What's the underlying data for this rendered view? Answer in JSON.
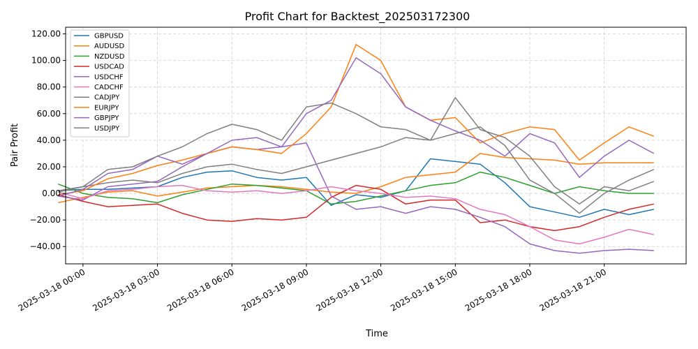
{
  "chart_data": {
    "type": "line",
    "title": "Profit Chart for Backtest_202503172300",
    "xlabel": "Time",
    "ylabel": "Pair Profit",
    "ylim": [
      -53,
      125
    ],
    "xlim": [
      -0.7,
      24.3
    ],
    "x_unit": "hours after 2025-03-18 00:00",
    "grid": true,
    "legend_position": "top-left",
    "yticks": [
      -40,
      -20,
      0,
      20,
      40,
      60,
      80,
      100,
      120
    ],
    "ytick_labels": [
      "−40.00",
      "−20.00",
      "0.00",
      "20.00",
      "40.00",
      "60.00",
      "80.00",
      "100.00",
      "120.00"
    ],
    "xticks": [
      0,
      3,
      6,
      9,
      12,
      15,
      18,
      21
    ],
    "xtick_labels": [
      "2025-03-18 00:00",
      "2025-03-18 03:00",
      "2025-03-18 06:00",
      "2025-03-18 09:00",
      "2025-03-18 12:00",
      "2025-03-18 15:00",
      "2025-03-18 18:00",
      "2025-03-18 21:00"
    ],
    "series": [
      {
        "name": "GBPUSD",
        "color": "#1f77b4",
        "points": [
          [
            -1,
            2
          ],
          [
            0,
            3
          ],
          [
            1,
            3
          ],
          [
            2,
            4
          ],
          [
            3,
            5
          ],
          [
            4,
            12
          ],
          [
            5,
            16
          ],
          [
            6,
            17
          ],
          [
            7,
            12
          ],
          [
            8,
            10
          ],
          [
            9,
            12
          ],
          [
            10,
            -9
          ],
          [
            11,
            -1
          ],
          [
            12,
            -3
          ],
          [
            13,
            2
          ],
          [
            14,
            26
          ],
          [
            15,
            24
          ],
          [
            16,
            22
          ],
          [
            17,
            8
          ],
          [
            18,
            -10
          ],
          [
            19,
            -14
          ],
          [
            20,
            -18
          ],
          [
            21,
            -12
          ],
          [
            22,
            -16
          ],
          [
            23,
            -12
          ]
        ]
      },
      {
        "name": "AUDUSD",
        "color": "#ff7f0e",
        "points": [
          [
            -1,
            -7
          ],
          [
            0,
            -3
          ],
          [
            1,
            1
          ],
          [
            2,
            2
          ],
          [
            3,
            -2
          ],
          [
            4,
            1
          ],
          [
            5,
            4
          ],
          [
            6,
            5
          ],
          [
            7,
            6
          ],
          [
            8,
            5
          ],
          [
            9,
            3
          ],
          [
            10,
            1
          ],
          [
            11,
            0
          ],
          [
            12,
            5
          ],
          [
            13,
            12
          ],
          [
            14,
            14
          ],
          [
            15,
            16
          ],
          [
            16,
            30
          ],
          [
            17,
            27
          ],
          [
            18,
            26
          ],
          [
            19,
            25
          ],
          [
            20,
            22
          ],
          [
            21,
            23
          ],
          [
            22,
            23
          ],
          [
            23,
            23
          ]
        ]
      },
      {
        "name": "NZDUSD",
        "color": "#2ca02c",
        "points": [
          [
            -1,
            7
          ],
          [
            0,
            0
          ],
          [
            1,
            -3
          ],
          [
            2,
            -4
          ],
          [
            3,
            -7
          ],
          [
            4,
            -1
          ],
          [
            5,
            3
          ],
          [
            6,
            7
          ],
          [
            7,
            6
          ],
          [
            8,
            4
          ],
          [
            9,
            2
          ],
          [
            10,
            -8
          ],
          [
            11,
            -6
          ],
          [
            12,
            -2
          ],
          [
            13,
            2
          ],
          [
            14,
            6
          ],
          [
            15,
            8
          ],
          [
            16,
            16
          ],
          [
            17,
            12
          ],
          [
            18,
            6
          ],
          [
            19,
            0
          ],
          [
            20,
            5
          ],
          [
            21,
            2
          ],
          [
            22,
            0
          ],
          [
            23,
            0
          ]
        ]
      },
      {
        "name": "USDCAD",
        "color": "#d62728",
        "points": [
          [
            -1,
            -1
          ],
          [
            0,
            -6
          ],
          [
            1,
            -10
          ],
          [
            2,
            -9
          ],
          [
            3,
            -8
          ],
          [
            4,
            -15
          ],
          [
            5,
            -20
          ],
          [
            6,
            -21
          ],
          [
            7,
            -19
          ],
          [
            8,
            -20
          ],
          [
            9,
            -18
          ],
          [
            10,
            -3
          ],
          [
            11,
            6
          ],
          [
            12,
            3
          ],
          [
            13,
            -8
          ],
          [
            14,
            -5
          ],
          [
            15,
            -5
          ],
          [
            16,
            -22
          ],
          [
            17,
            -20
          ],
          [
            18,
            -25
          ],
          [
            19,
            -28
          ],
          [
            20,
            -25
          ],
          [
            21,
            -18
          ],
          [
            22,
            -12
          ],
          [
            23,
            -8
          ]
        ]
      },
      {
        "name": "USDCHF",
        "color": "#9467bd",
        "points": [
          [
            -1,
            -2
          ],
          [
            0,
            -5
          ],
          [
            1,
            5
          ],
          [
            2,
            7
          ],
          [
            3,
            9
          ],
          [
            4,
            20
          ],
          [
            5,
            30
          ],
          [
            6,
            35
          ],
          [
            7,
            33
          ],
          [
            8,
            35
          ],
          [
            9,
            38
          ],
          [
            10,
            -2
          ],
          [
            11,
            -12
          ],
          [
            12,
            -10
          ],
          [
            13,
            -15
          ],
          [
            14,
            -10
          ],
          [
            15,
            -12
          ],
          [
            16,
            -18
          ],
          [
            17,
            -25
          ],
          [
            18,
            -38
          ],
          [
            19,
            -43
          ],
          [
            20,
            -45
          ],
          [
            21,
            -43
          ],
          [
            22,
            -42
          ],
          [
            23,
            -43
          ]
        ]
      },
      {
        "name": "CADCHF",
        "color": "#e377c2",
        "points": [
          [
            -1,
            1
          ],
          [
            0,
            -4
          ],
          [
            1,
            2
          ],
          [
            2,
            3
          ],
          [
            3,
            5
          ],
          [
            4,
            6
          ],
          [
            5,
            2
          ],
          [
            6,
            1
          ],
          [
            7,
            2
          ],
          [
            8,
            0
          ],
          [
            9,
            2
          ],
          [
            10,
            5
          ],
          [
            11,
            2
          ],
          [
            12,
            0
          ],
          [
            13,
            -3
          ],
          [
            14,
            -2
          ],
          [
            15,
            -4
          ],
          [
            16,
            -12
          ],
          [
            17,
            -16
          ],
          [
            18,
            -25
          ],
          [
            19,
            -35
          ],
          [
            20,
            -38
          ],
          [
            21,
            -33
          ],
          [
            22,
            -27
          ],
          [
            23,
            -31
          ]
        ]
      },
      {
        "name": "CADJPY",
        "color": "#7f7f7f",
        "points": [
          [
            -1,
            1
          ],
          [
            0,
            5
          ],
          [
            1,
            8
          ],
          [
            2,
            10
          ],
          [
            3,
            8
          ],
          [
            4,
            15
          ],
          [
            5,
            20
          ],
          [
            6,
            22
          ],
          [
            7,
            18
          ],
          [
            8,
            15
          ],
          [
            9,
            20
          ],
          [
            10,
            25
          ],
          [
            11,
            30
          ],
          [
            12,
            35
          ],
          [
            13,
            42
          ],
          [
            14,
            40
          ],
          [
            15,
            45
          ],
          [
            16,
            50
          ],
          [
            17,
            36
          ],
          [
            18,
            10
          ],
          [
            19,
            0
          ],
          [
            20,
            -15
          ],
          [
            21,
            0
          ],
          [
            22,
            10
          ],
          [
            23,
            18
          ]
        ]
      },
      {
        "name": "EURJPY",
        "color": "#ff7f0e",
        "points": [
          [
            -1,
            -1
          ],
          [
            0,
            2
          ],
          [
            1,
            11
          ],
          [
            2,
            15
          ],
          [
            3,
            21
          ],
          [
            4,
            25
          ],
          [
            5,
            30
          ],
          [
            6,
            35
          ],
          [
            7,
            33
          ],
          [
            8,
            30
          ],
          [
            9,
            45
          ],
          [
            10,
            65
          ],
          [
            11,
            112
          ],
          [
            12,
            100
          ],
          [
            13,
            65
          ],
          [
            14,
            55
          ],
          [
            15,
            57
          ],
          [
            16,
            38
          ],
          [
            17,
            45
          ],
          [
            18,
            50
          ],
          [
            19,
            48
          ],
          [
            20,
            25
          ],
          [
            21,
            38
          ],
          [
            22,
            50
          ],
          [
            23,
            43
          ]
        ]
      },
      {
        "name": "GBPJPY",
        "color": "#9467bd",
        "points": [
          [
            -1,
            -2
          ],
          [
            0,
            3
          ],
          [
            1,
            15
          ],
          [
            2,
            18
          ],
          [
            3,
            28
          ],
          [
            4,
            22
          ],
          [
            5,
            30
          ],
          [
            6,
            40
          ],
          [
            7,
            42
          ],
          [
            8,
            35
          ],
          [
            9,
            60
          ],
          [
            10,
            70
          ],
          [
            11,
            102
          ],
          [
            12,
            90
          ],
          [
            13,
            65
          ],
          [
            14,
            55
          ],
          [
            15,
            47
          ],
          [
            16,
            40
          ],
          [
            17,
            28
          ],
          [
            18,
            45
          ],
          [
            19,
            38
          ],
          [
            20,
            12
          ],
          [
            21,
            28
          ],
          [
            22,
            40
          ],
          [
            23,
            30
          ]
        ]
      },
      {
        "name": "USDJPY",
        "color": "#7f7f7f",
        "points": [
          [
            -1,
            2
          ],
          [
            0,
            5
          ],
          [
            1,
            18
          ],
          [
            2,
            20
          ],
          [
            3,
            28
          ],
          [
            4,
            35
          ],
          [
            5,
            45
          ],
          [
            6,
            52
          ],
          [
            7,
            48
          ],
          [
            8,
            40
          ],
          [
            9,
            65
          ],
          [
            10,
            68
          ],
          [
            11,
            60
          ],
          [
            12,
            50
          ],
          [
            13,
            48
          ],
          [
            14,
            40
          ],
          [
            15,
            72
          ],
          [
            16,
            48
          ],
          [
            17,
            42
          ],
          [
            18,
            28
          ],
          [
            19,
            5
          ],
          [
            20,
            -8
          ],
          [
            21,
            5
          ],
          [
            22,
            2
          ],
          [
            23,
            9
          ]
        ]
      }
    ]
  }
}
